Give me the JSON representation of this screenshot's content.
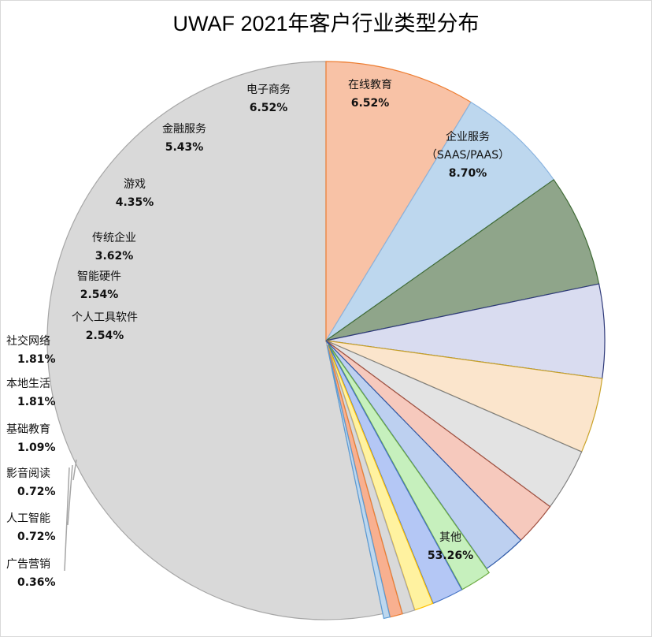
{
  "chart_data": {
    "type": "pie",
    "title": "UWAF 2021年客户行业类型分布",
    "slices": [
      {
        "label": "其他",
        "value": 53.26,
        "value_label": "53.26%",
        "color": "#d9d9d9",
        "stroke": "#a6a6a6"
      },
      {
        "label": "企业服务",
        "sublabel": "（SAAS/PAAS）",
        "value": 8.7,
        "value_label": "8.70%",
        "color": "#f8c2a6",
        "stroke": "#ed7d31"
      },
      {
        "label": "在线教育",
        "value": 6.52,
        "value_label": "6.52%",
        "color": "#bdd7ee",
        "stroke": "#8ab4e0"
      },
      {
        "label": "电子商务",
        "value": 6.52,
        "value_label": "6.52%",
        "color": "#8fa58a",
        "stroke": "#3f6b35"
      },
      {
        "label": "金融服务",
        "value": 5.43,
        "value_label": "5.43%",
        "color": "#d9dcf0",
        "stroke": "#2f3a7a"
      },
      {
        "label": "游戏",
        "value": 4.35,
        "value_label": "4.35%",
        "color": "#fbe5cc",
        "stroke": "#c9a227"
      },
      {
        "label": "传统企业",
        "value": 3.62,
        "value_label": "3.62%",
        "color": "#e3e3e3",
        "stroke": "#7f7f7f"
      },
      {
        "label": "智能硬件",
        "value": 2.54,
        "value_label": "2.54%",
        "color": "#f6c9bd",
        "stroke": "#a05040"
      },
      {
        "label": "个人工具软件",
        "value": 2.54,
        "value_label": "2.54%",
        "color": "#bdd0f0",
        "stroke": "#2e5aa8"
      },
      {
        "label": "社交网络",
        "value": 1.81,
        "value_label": "1.81%",
        "color": "#c6f0bd",
        "stroke": "#70ad47"
      },
      {
        "label": "本地生活",
        "value": 1.81,
        "value_label": "1.81%",
        "color": "#b4c7f5",
        "stroke": "#4472c4"
      },
      {
        "label": "基础教育",
        "value": 1.09,
        "value_label": "1.09%",
        "color": "#fff2a0",
        "stroke": "#ffc000"
      },
      {
        "label": "影音阅读",
        "value": 0.72,
        "value_label": "0.72%",
        "color": "#d9d9d9",
        "stroke": "#a6a6a6"
      },
      {
        "label": "人工智能",
        "value": 0.72,
        "value_label": "0.72%",
        "color": "#f8b090",
        "stroke": "#ed7d31"
      },
      {
        "label": "广告营销",
        "value": 0.36,
        "value_label": "0.36%",
        "color": "#bdd7ee",
        "stroke": "#5b9bd5"
      }
    ],
    "start_angle": "top",
    "direction": "clockwise",
    "data_labels": "category and percentage",
    "legend": "none"
  }
}
